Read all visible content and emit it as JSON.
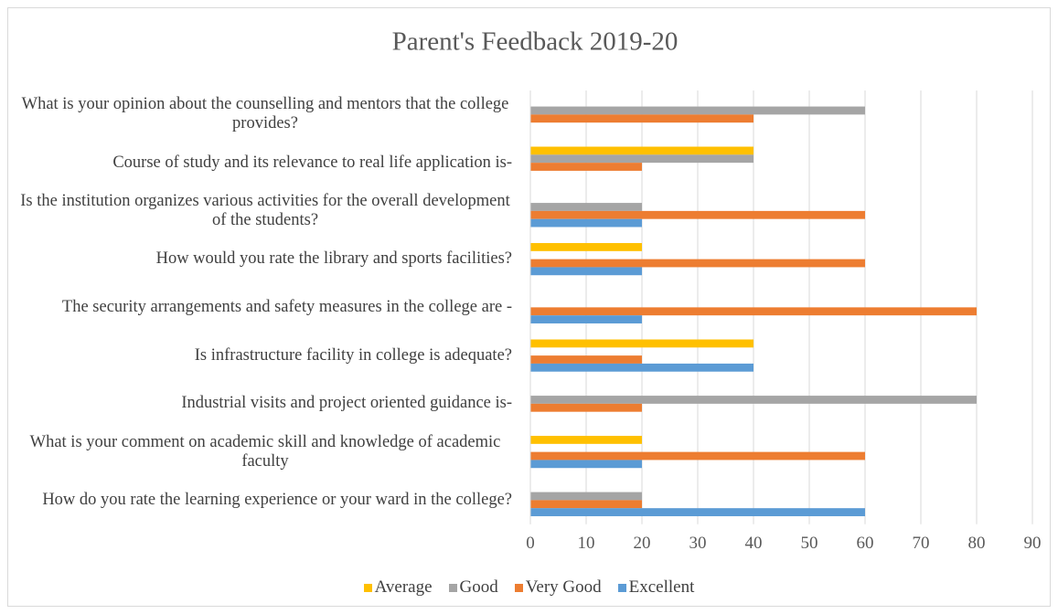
{
  "chart_data": {
    "type": "hbar",
    "title": "Parent's Feedback 2019-20",
    "categories": [
      "What is your opinion about the counselling and mentors that the college provides?",
      "Course of study and its relevance to real life application is-",
      "Is the institution organizes various activities for the overall development of the students?",
      "How would you rate the library and sports facilities?",
      "The security arrangements and safety measures in the college are -",
      "Is infrastructure facility in college is adequate?",
      "Industrial visits and project oriented guidance is-",
      "What is your comment on academic skill and knowledge of academic faculty",
      "How do you rate the learning experience or your ward in the college?"
    ],
    "series": [
      {
        "name": "Average",
        "color": "#ffc000",
        "values": [
          0,
          40,
          0,
          20,
          0,
          40,
          0,
          20,
          0
        ]
      },
      {
        "name": "Good",
        "color": "#a5a5a5",
        "values": [
          60,
          40,
          20,
          0,
          0,
          0,
          80,
          0,
          20
        ]
      },
      {
        "name": "Very Good",
        "color": "#ed7d31",
        "values": [
          40,
          20,
          60,
          60,
          80,
          20,
          20,
          60,
          20
        ]
      },
      {
        "name": "Excellent",
        "color": "#5b9bd5",
        "values": [
          0,
          0,
          20,
          20,
          20,
          40,
          0,
          20,
          60
        ]
      }
    ],
    "xlim": [
      0,
      90
    ],
    "xticks": [
      0,
      10,
      20,
      30,
      40,
      50,
      60,
      70,
      80,
      90
    ],
    "grid": true,
    "legend": "bottom"
  }
}
